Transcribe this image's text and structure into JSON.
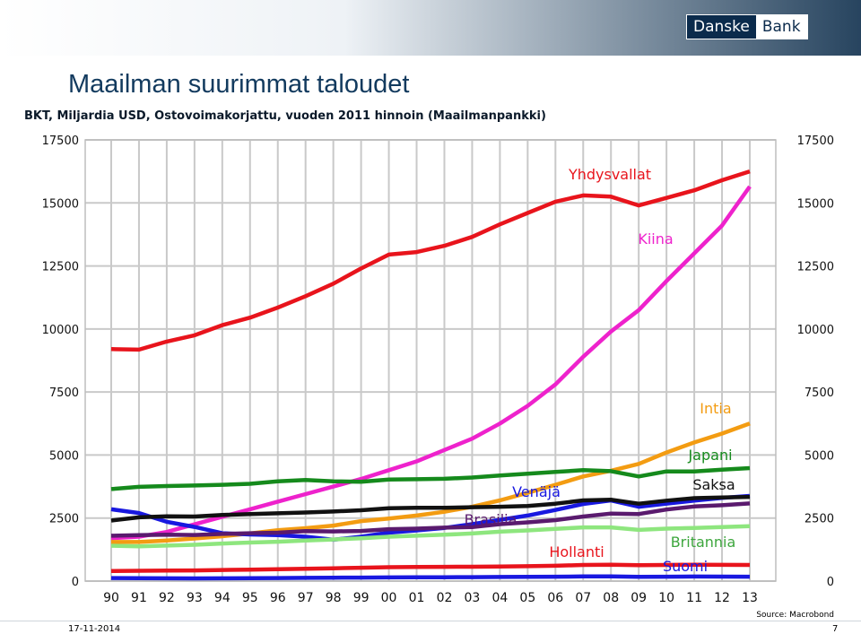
{
  "header": {
    "brand_left": "Danske",
    "brand_right": "Bank"
  },
  "chart_title": "Maailman suurimmat taloudet",
  "chart_subtitle": "BKT, Miljardia USD, Ostovoimakorjattu, vuoden 2011 hinnoin (Maailmanpankki)",
  "source": "Source: Macrobond",
  "footer": {
    "date": "17-11-2014",
    "page": "7"
  },
  "chart_data": {
    "type": "line",
    "title": "Maailman suurimmat taloudet",
    "subtitle": "BKT, Miljardia USD, Ostovoimakorjattu, vuoden 2011 hinnoin (Maailmanpankki)",
    "x": [
      "90",
      "91",
      "92",
      "93",
      "94",
      "95",
      "96",
      "97",
      "98",
      "99",
      "00",
      "01",
      "02",
      "03",
      "04",
      "05",
      "06",
      "07",
      "08",
      "09",
      "10",
      "11",
      "12",
      "13"
    ],
    "y_ticks": [
      0,
      2500,
      5000,
      7500,
      10000,
      12500,
      15000,
      17500
    ],
    "ylim": [
      0,
      17500
    ],
    "grid": true,
    "series": [
      {
        "name": "Yhdysvallat",
        "color": "#e8141c",
        "values": [
          9200,
          9180,
          9500,
          9750,
          10150,
          10450,
          10850,
          11300,
          11800,
          12400,
          12950,
          13050,
          13300,
          13650,
          14150,
          14600,
          15050,
          15300,
          15250,
          14900,
          15200,
          15500,
          15900,
          16250
        ]
      },
      {
        "name": "Kiina",
        "color": "#ee22cc",
        "values": [
          1700,
          1760,
          1950,
          2250,
          2550,
          2850,
          3150,
          3450,
          3750,
          4050,
          4400,
          4750,
          5200,
          5650,
          6250,
          6950,
          7800,
          8900,
          9900,
          10750,
          11900,
          13000,
          14100,
          15650
        ]
      },
      {
        "name": "Intia",
        "color": "#f39c12",
        "values": [
          1550,
          1550,
          1610,
          1690,
          1780,
          1890,
          2020,
          2100,
          2200,
          2380,
          2480,
          2600,
          2750,
          2950,
          3200,
          3500,
          3820,
          4150,
          4380,
          4650,
          5100,
          5500,
          5850,
          6250
        ]
      },
      {
        "name": "Japani",
        "color": "#158a1c",
        "values": [
          3650,
          3740,
          3770,
          3790,
          3820,
          3860,
          3960,
          4010,
          3960,
          3940,
          4030,
          4040,
          4060,
          4110,
          4190,
          4260,
          4330,
          4400,
          4360,
          4150,
          4350,
          4350,
          4420,
          4480
        ]
      },
      {
        "name": "Venäjä",
        "color": "#1818e0",
        "values": [
          2850,
          2700,
          2350,
          2150,
          1900,
          1850,
          1820,
          1760,
          1640,
          1760,
          1920,
          2010,
          2110,
          2260,
          2430,
          2600,
          2820,
          3060,
          3200,
          2950,
          3070,
          3190,
          3300,
          3380
        ]
      },
      {
        "name": "Saksa",
        "color": "#111111",
        "values": [
          2400,
          2530,
          2570,
          2560,
          2620,
          2660,
          2690,
          2720,
          2760,
          2810,
          2890,
          2910,
          2910,
          2930,
          2950,
          2980,
          3070,
          3200,
          3230,
          3070,
          3190,
          3290,
          3320,
          3340
        ]
      },
      {
        "name": "Brasilia",
        "color": "#5a1a6e",
        "values": [
          1800,
          1820,
          1840,
          1830,
          1870,
          1900,
          1920,
          1980,
          1970,
          1990,
          2060,
          2080,
          2120,
          2140,
          2260,
          2330,
          2420,
          2560,
          2680,
          2660,
          2840,
          2960,
          3010,
          3080
        ]
      },
      {
        "name": "Britannia",
        "color": "#8ee67e",
        "values": [
          1400,
          1380,
          1410,
          1440,
          1490,
          1530,
          1560,
          1610,
          1650,
          1700,
          1760,
          1800,
          1840,
          1890,
          1960,
          2010,
          2070,
          2130,
          2130,
          2030,
          2080,
          2110,
          2140,
          2180
        ]
      },
      {
        "name": "Hollanti",
        "color": "#e8141c",
        "values": [
          400,
          410,
          420,
          425,
          440,
          455,
          470,
          490,
          510,
          530,
          550,
          560,
          565,
          570,
          580,
          590,
          610,
          640,
          650,
          630,
          640,
          650,
          645,
          640
        ]
      },
      {
        "name": "Suomi",
        "color": "#1818e0",
        "values": [
          120,
          115,
          110,
          108,
          112,
          118,
          122,
          128,
          134,
          140,
          146,
          150,
          152,
          156,
          162,
          167,
          175,
          185,
          186,
          171,
          176,
          180,
          178,
          176
        ]
      }
    ]
  }
}
